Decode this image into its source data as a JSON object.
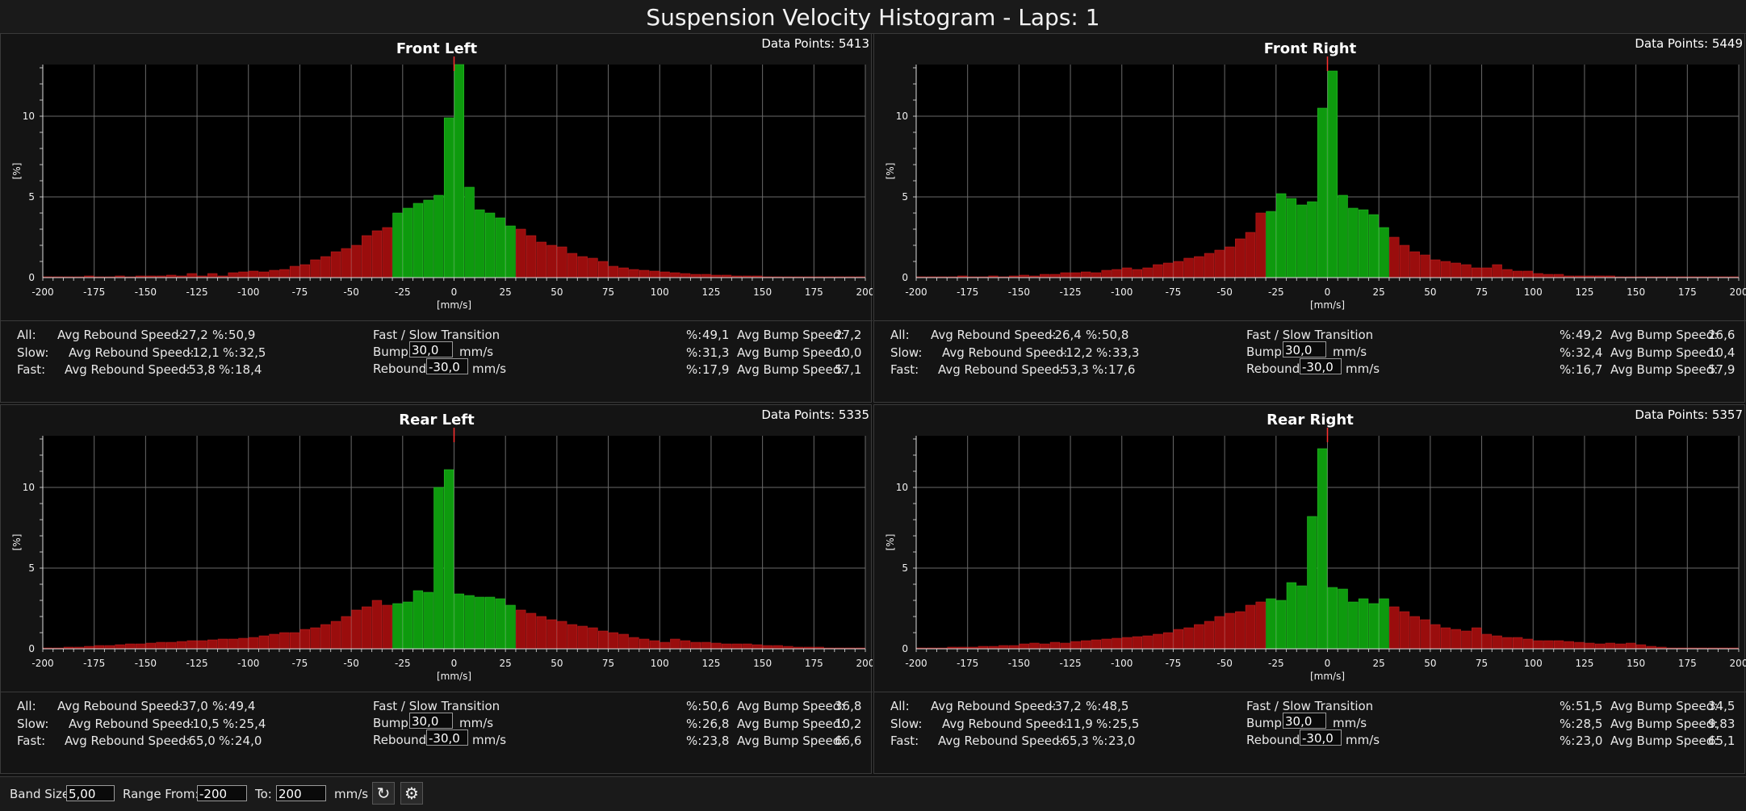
{
  "window_title": "Suspension Velocity Histogram - Laps: 1",
  "common": {
    "all_label": "All:",
    "slow_label": "Slow:",
    "fast_label": "Fast:",
    "avg_rebound_label": "Avg Rebound Speed:",
    "avg_bump_label": "Avg Bump Speed:",
    "pct_label": "%:",
    "transition_title": "Fast / Slow Transition",
    "bump_label": "Bump:",
    "rebound_label": "Rebound:",
    "unit": "mm/s",
    "axis_x_label": "[mm/s]",
    "axis_y_label": "[%]",
    "data_points_label": "Data Points:",
    "x_ticks": [
      "-200",
      "-175",
      "-150",
      "-125",
      "-100",
      "-75",
      "-50",
      "-25",
      "0",
      "25",
      "50",
      "75",
      "100",
      "125",
      "150",
      "175",
      "200"
    ],
    "y_ticks": [
      "0",
      "5",
      "10"
    ],
    "bar_colors": {
      "slow": "#0e9a0e",
      "fast": "#9a0d0d"
    }
  },
  "panels": [
    {
      "title": "Front Left",
      "data_points": "5413",
      "all": {
        "rebound": "-27,2",
        "rebound_pct": "50,9",
        "bump_pct": "49,1",
        "bump": "27,2"
      },
      "slow": {
        "rebound": "-12,1",
        "rebound_pct": "32,5",
        "bump_pct": "31,3",
        "bump": "10,0"
      },
      "fast": {
        "rebound": "-53,8",
        "rebound_pct": "18,4",
        "bump_pct": "17,9",
        "bump": "57,1"
      },
      "bump_value": "30,0",
      "rebound_value": "-30,0"
    },
    {
      "title": "Front Right",
      "data_points": "5449",
      "all": {
        "rebound": "-26,4",
        "rebound_pct": "50,8",
        "bump_pct": "49,2",
        "bump": "26,6"
      },
      "slow": {
        "rebound": "-12,2",
        "rebound_pct": "33,3",
        "bump_pct": "32,4",
        "bump": "10,4"
      },
      "fast": {
        "rebound": "-53,3",
        "rebound_pct": "17,6",
        "bump_pct": "16,7",
        "bump": "57,9"
      },
      "bump_value": "30,0",
      "rebound_value": "-30,0"
    },
    {
      "title": "Rear Left",
      "data_points": "5335",
      "all": {
        "rebound": "-37,0",
        "rebound_pct": "49,4",
        "bump_pct": "50,6",
        "bump": "36,8"
      },
      "slow": {
        "rebound": "-10,5",
        "rebound_pct": "25,4",
        "bump_pct": "26,8",
        "bump": "10,2"
      },
      "fast": {
        "rebound": "-65,0",
        "rebound_pct": "24,0",
        "bump_pct": "23,8",
        "bump": "66,6"
      },
      "bump_value": "30,0",
      "rebound_value": "-30,0"
    },
    {
      "title": "Rear Right",
      "data_points": "5357",
      "all": {
        "rebound": "-37,2",
        "rebound_pct": "48,5",
        "bump_pct": "51,5",
        "bump": "34,5"
      },
      "slow": {
        "rebound": "-11,9",
        "rebound_pct": "25,5",
        "bump_pct": "28,5",
        "bump": "9,83"
      },
      "fast": {
        "rebound": "-65,3",
        "rebound_pct": "23,0",
        "bump_pct": "23,0",
        "bump": "65,1"
      },
      "bump_value": "30,0",
      "rebound_value": "-30,0"
    }
  ],
  "bottom": {
    "band_size_label": "Band Size:",
    "band_size": "5,00",
    "range_from_label": "Range From:",
    "range_from": "-200",
    "to_label": "To:",
    "range_to": "200",
    "unit": "mm/s",
    "refresh_icon": "refresh-icon",
    "settings_icon": "settings-icon"
  },
  "chart_data": [
    {
      "type": "bar",
      "title": "Front Left",
      "xlabel": "[mm/s]",
      "ylabel": "[%]",
      "xlim": [
        -200,
        200
      ],
      "ylim": [
        0,
        13.2
      ],
      "grid": true,
      "x": [
        -197.5,
        -192.5,
        -187.5,
        -182.5,
        -177.5,
        -172.5,
        -167.5,
        -162.5,
        -157.5,
        -152.5,
        -147.5,
        -142.5,
        -137.5,
        -132.5,
        -127.5,
        -122.5,
        -117.5,
        -112.5,
        -107.5,
        -102.5,
        -97.5,
        -92.5,
        -87.5,
        -82.5,
        -77.5,
        -72.5,
        -67.5,
        -62.5,
        -57.5,
        -52.5,
        -47.5,
        -42.5,
        -37.5,
        -32.5,
        -27.5,
        -22.5,
        -17.5,
        -12.5,
        -7.5,
        -2.5,
        2.5,
        7.5,
        12.5,
        17.5,
        22.5,
        27.5,
        32.5,
        37.5,
        42.5,
        47.5,
        52.5,
        57.5,
        62.5,
        67.5,
        72.5,
        77.5,
        82.5,
        87.5,
        92.5,
        97.5,
        102.5,
        107.5,
        112.5,
        117.5,
        122.5,
        127.5,
        132.5,
        137.5,
        142.5,
        147.5,
        152.5,
        157.5,
        162.5,
        167.5,
        172.5,
        177.5,
        182.5,
        187.5,
        192.5,
        197.5
      ],
      "values": [
        0.05,
        0.05,
        0.05,
        0.05,
        0.1,
        0.05,
        0.05,
        0.1,
        0.05,
        0.1,
        0.1,
        0.1,
        0.15,
        0.1,
        0.25,
        0.1,
        0.25,
        0.1,
        0.3,
        0.35,
        0.4,
        0.35,
        0.45,
        0.5,
        0.7,
        0.8,
        1.1,
        1.3,
        1.6,
        1.8,
        2.0,
        2.6,
        2.9,
        3.1,
        4.0,
        4.3,
        4.6,
        4.8,
        5.1,
        9.9,
        13.2,
        5.6,
        4.2,
        4.0,
        3.7,
        3.2,
        3.0,
        2.6,
        2.2,
        2.0,
        1.9,
        1.5,
        1.3,
        1.2,
        1.0,
        0.7,
        0.6,
        0.5,
        0.45,
        0.4,
        0.35,
        0.3,
        0.25,
        0.2,
        0.2,
        0.15,
        0.15,
        0.1,
        0.1,
        0.1,
        0.05,
        0.05,
        0.05,
        0.05,
        0.05,
        0.05,
        0.05,
        0.05,
        0.05,
        0.05
      ],
      "series_colors": "x between -30 and 30 slow (green), else fast (red)"
    },
    {
      "type": "bar",
      "title": "Front Right",
      "xlabel": "[mm/s]",
      "ylabel": "[%]",
      "xlim": [
        -200,
        200
      ],
      "ylim": [
        0,
        13.2
      ],
      "grid": true,
      "x": [
        -197.5,
        -192.5,
        -187.5,
        -182.5,
        -177.5,
        -172.5,
        -167.5,
        -162.5,
        -157.5,
        -152.5,
        -147.5,
        -142.5,
        -137.5,
        -132.5,
        -127.5,
        -122.5,
        -117.5,
        -112.5,
        -107.5,
        -102.5,
        -97.5,
        -92.5,
        -87.5,
        -82.5,
        -77.5,
        -72.5,
        -67.5,
        -62.5,
        -57.5,
        -52.5,
        -47.5,
        -42.5,
        -37.5,
        -32.5,
        -27.5,
        -22.5,
        -17.5,
        -12.5,
        -7.5,
        -2.5,
        2.5,
        7.5,
        12.5,
        17.5,
        22.5,
        27.5,
        32.5,
        37.5,
        42.5,
        47.5,
        52.5,
        57.5,
        62.5,
        67.5,
        72.5,
        77.5,
        82.5,
        87.5,
        92.5,
        97.5,
        102.5,
        107.5,
        112.5,
        117.5,
        122.5,
        127.5,
        132.5,
        137.5,
        142.5,
        147.5,
        152.5,
        157.5,
        162.5,
        167.5,
        172.5,
        177.5,
        182.5,
        187.5,
        192.5,
        197.5
      ],
      "values": [
        0.05,
        0.05,
        0.05,
        0.05,
        0.1,
        0.05,
        0.05,
        0.1,
        0.05,
        0.1,
        0.15,
        0.1,
        0.2,
        0.2,
        0.3,
        0.3,
        0.35,
        0.3,
        0.45,
        0.5,
        0.6,
        0.5,
        0.6,
        0.8,
        0.9,
        1.0,
        1.2,
        1.3,
        1.5,
        1.7,
        1.9,
        2.4,
        2.8,
        4.0,
        4.1,
        5.2,
        4.9,
        4.5,
        4.7,
        10.5,
        12.8,
        5.1,
        4.3,
        4.2,
        3.9,
        3.1,
        2.5,
        2.0,
        1.6,
        1.4,
        1.1,
        1.0,
        0.9,
        0.8,
        0.6,
        0.6,
        0.8,
        0.5,
        0.4,
        0.4,
        0.25,
        0.2,
        0.2,
        0.1,
        0.1,
        0.1,
        0.1,
        0.1,
        0.05,
        0.05,
        0.05,
        0.05,
        0.05,
        0.05,
        0.05,
        0.05,
        0.05,
        0.05,
        0.05,
        0.05
      ],
      "series_colors": "x between -30 and 30 slow (green), else fast (red)"
    },
    {
      "type": "bar",
      "title": "Rear Left",
      "xlabel": "[mm/s]",
      "ylabel": "[%]",
      "xlim": [
        -200,
        200
      ],
      "ylim": [
        0,
        13.2
      ],
      "grid": true,
      "x": [
        -197.5,
        -192.5,
        -187.5,
        -182.5,
        -177.5,
        -172.5,
        -167.5,
        -162.5,
        -157.5,
        -152.5,
        -147.5,
        -142.5,
        -137.5,
        -132.5,
        -127.5,
        -122.5,
        -117.5,
        -112.5,
        -107.5,
        -102.5,
        -97.5,
        -92.5,
        -87.5,
        -82.5,
        -77.5,
        -72.5,
        -67.5,
        -62.5,
        -57.5,
        -52.5,
        -47.5,
        -42.5,
        -37.5,
        -32.5,
        -27.5,
        -22.5,
        -17.5,
        -12.5,
        -7.5,
        -2.5,
        2.5,
        7.5,
        12.5,
        17.5,
        22.5,
        27.5,
        32.5,
        37.5,
        42.5,
        47.5,
        52.5,
        57.5,
        62.5,
        67.5,
        72.5,
        77.5,
        82.5,
        87.5,
        92.5,
        97.5,
        102.5,
        107.5,
        112.5,
        117.5,
        122.5,
        127.5,
        132.5,
        137.5,
        142.5,
        147.5,
        152.5,
        157.5,
        162.5,
        167.5,
        172.5,
        177.5,
        182.5,
        187.5,
        192.5,
        197.5
      ],
      "values": [
        0.05,
        0.05,
        0.1,
        0.1,
        0.15,
        0.2,
        0.2,
        0.25,
        0.3,
        0.3,
        0.35,
        0.4,
        0.4,
        0.45,
        0.5,
        0.5,
        0.55,
        0.6,
        0.6,
        0.65,
        0.7,
        0.8,
        0.9,
        1.0,
        1.0,
        1.2,
        1.3,
        1.5,
        1.7,
        2.0,
        2.4,
        2.6,
        3.0,
        2.7,
        2.8,
        2.9,
        3.6,
        3.5,
        10.0,
        11.1,
        3.4,
        3.3,
        3.2,
        3.2,
        3.1,
        2.7,
        2.4,
        2.2,
        2.0,
        1.8,
        1.7,
        1.5,
        1.4,
        1.3,
        1.1,
        1.0,
        0.9,
        0.7,
        0.6,
        0.5,
        0.4,
        0.6,
        0.5,
        0.4,
        0.4,
        0.35,
        0.3,
        0.3,
        0.3,
        0.25,
        0.2,
        0.2,
        0.15,
        0.1,
        0.1,
        0.1,
        0.05,
        0.05,
        0.05,
        0.05
      ],
      "series_colors": "x between -30 and 30 slow (green), else fast (red)"
    },
    {
      "type": "bar",
      "title": "Rear Right",
      "xlabel": "[mm/s]",
      "ylabel": "[%]",
      "xlim": [
        -200,
        200
      ],
      "ylim": [
        0,
        13.2
      ],
      "grid": true,
      "x": [
        -197.5,
        -192.5,
        -187.5,
        -182.5,
        -177.5,
        -172.5,
        -167.5,
        -162.5,
        -157.5,
        -152.5,
        -147.5,
        -142.5,
        -137.5,
        -132.5,
        -127.5,
        -122.5,
        -117.5,
        -112.5,
        -107.5,
        -102.5,
        -97.5,
        -92.5,
        -87.5,
        -82.5,
        -77.5,
        -72.5,
        -67.5,
        -62.5,
        -57.5,
        -52.5,
        -47.5,
        -42.5,
        -37.5,
        -32.5,
        -27.5,
        -22.5,
        -17.5,
        -12.5,
        -7.5,
        -2.5,
        2.5,
        7.5,
        12.5,
        17.5,
        22.5,
        27.5,
        32.5,
        37.5,
        42.5,
        47.5,
        52.5,
        57.5,
        62.5,
        67.5,
        72.5,
        77.5,
        82.5,
        87.5,
        92.5,
        97.5,
        102.5,
        107.5,
        112.5,
        117.5,
        122.5,
        127.5,
        132.5,
        137.5,
        142.5,
        147.5,
        152.5,
        157.5,
        162.5,
        167.5,
        172.5,
        177.5,
        182.5,
        187.5,
        192.5,
        197.5
      ],
      "values": [
        0.05,
        0.05,
        0.05,
        0.1,
        0.1,
        0.1,
        0.15,
        0.15,
        0.2,
        0.2,
        0.3,
        0.35,
        0.3,
        0.4,
        0.35,
        0.45,
        0.5,
        0.55,
        0.6,
        0.65,
        0.7,
        0.75,
        0.8,
        0.9,
        1.0,
        1.2,
        1.3,
        1.5,
        1.7,
        2.0,
        2.2,
        2.3,
        2.7,
        2.9,
        3.1,
        3.0,
        4.1,
        3.9,
        8.2,
        12.4,
        3.8,
        3.7,
        2.9,
        3.1,
        2.8,
        3.1,
        2.6,
        2.3,
        2.0,
        1.8,
        1.5,
        1.3,
        1.2,
        1.1,
        1.3,
        0.9,
        0.8,
        0.7,
        0.7,
        0.6,
        0.5,
        0.5,
        0.5,
        0.45,
        0.4,
        0.35,
        0.3,
        0.35,
        0.3,
        0.35,
        0.25,
        0.15,
        0.1,
        0.05,
        0.05,
        0.05,
        0.05,
        0.05,
        0.05,
        0.05
      ],
      "series_colors": "x between -30 and 30 slow (green), else fast (red)"
    }
  ]
}
